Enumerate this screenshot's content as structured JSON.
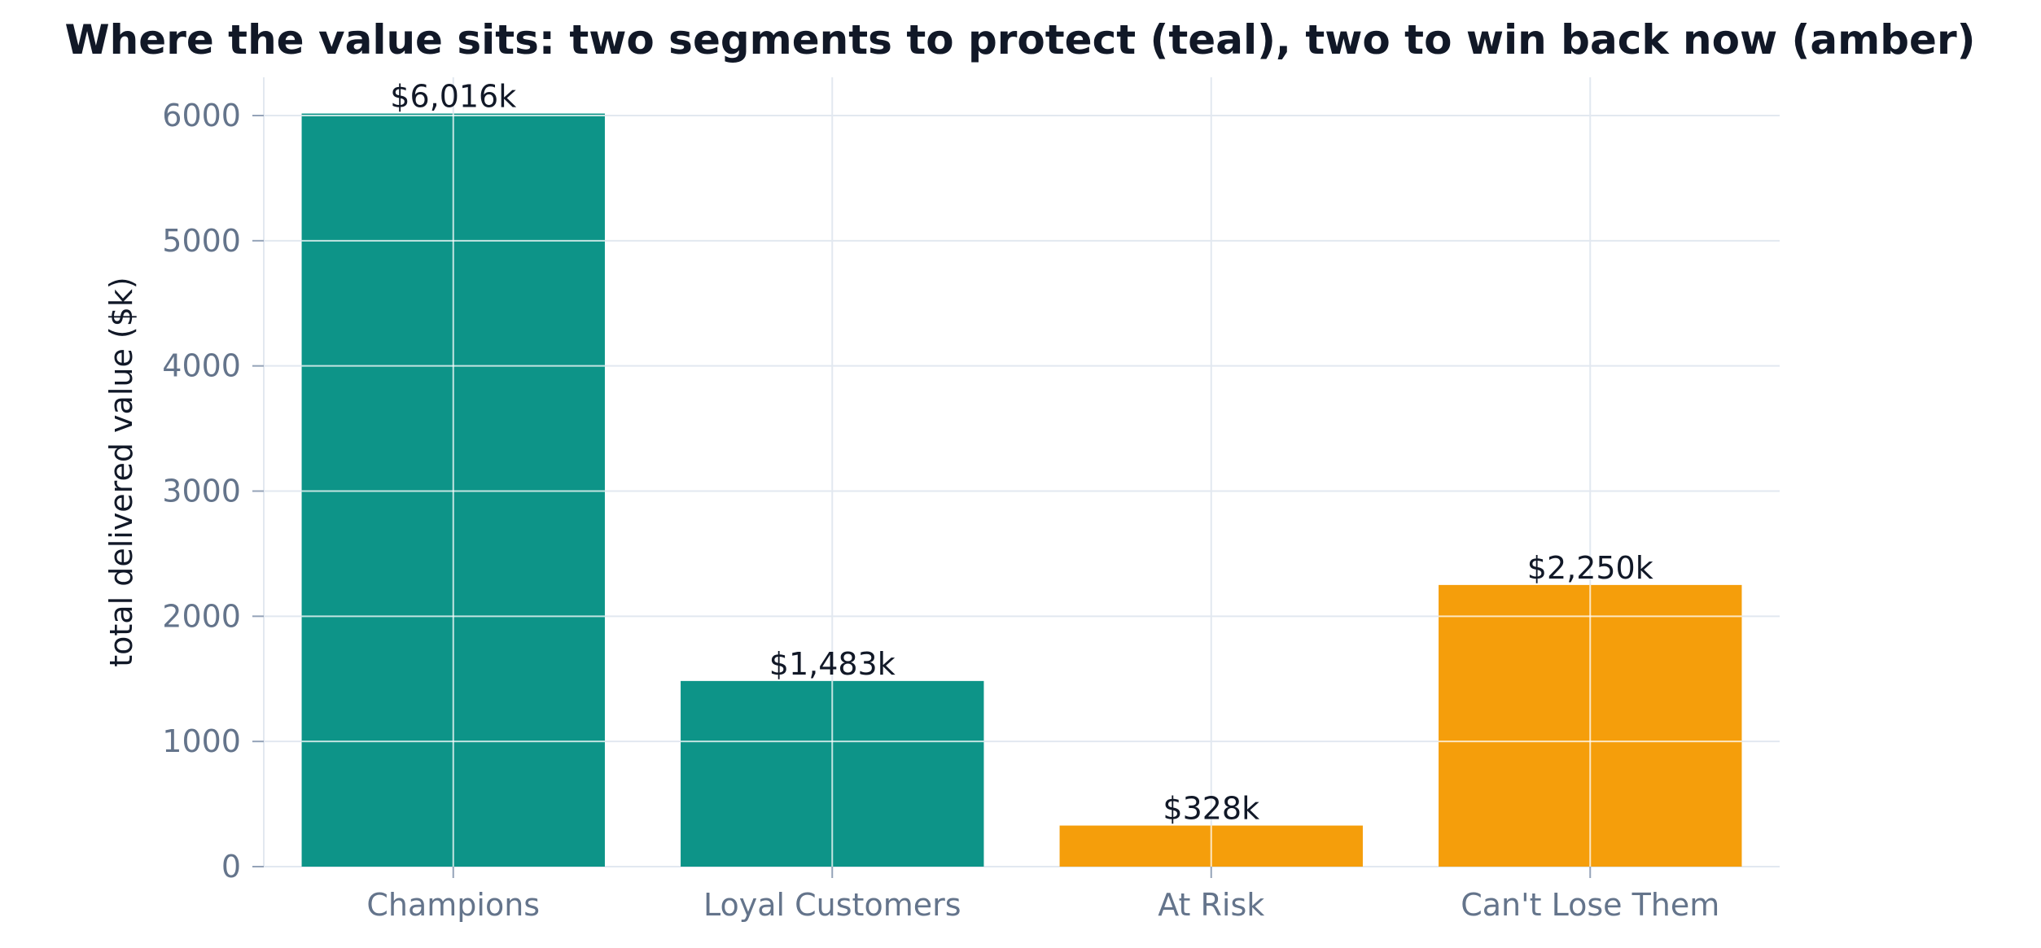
{
  "chart_data": {
    "type": "bar",
    "title": "Where the value sits: two segments to protect (teal), two to win back now (amber)",
    "xlabel": "",
    "ylabel": "total delivered value ($k)",
    "categories": [
      "Champions",
      "Loyal Customers",
      "At Risk",
      "Can't Lose Them"
    ],
    "values": [
      6016,
      1483,
      328,
      2250
    ],
    "value_labels": [
      "$6,016k",
      "$1,483k",
      "$328k",
      "$2,250k"
    ],
    "bar_colors": [
      "#0d9488",
      "#0d9488",
      "#f59e0b",
      "#f59e0b"
    ],
    "ylim": [
      0,
      6300
    ],
    "yticks": [
      0,
      1000,
      2000,
      3000,
      4000,
      5000,
      6000
    ],
    "grid": true,
    "legend": "none"
  }
}
